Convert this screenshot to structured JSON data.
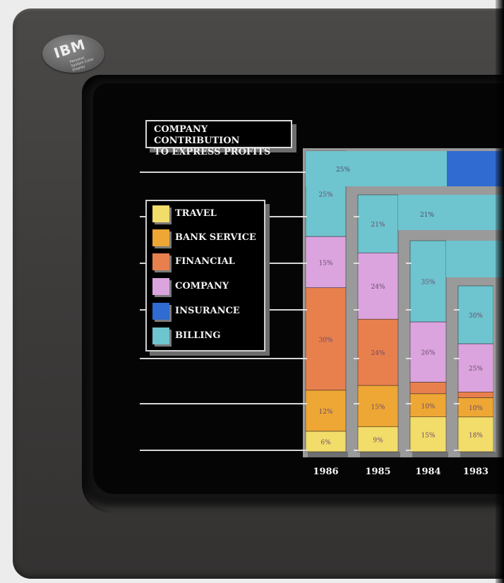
{
  "device": {
    "logo": "IBM",
    "badge_text": "Personal System Color Display"
  },
  "chart_data": {
    "type": "bar",
    "title": "COMPANY CONTRIBUTION TO EXPRESS PROFITS",
    "title_lines": [
      "COMPANY CONTRIBUTION",
      "TO EXPRESS PROFITS"
    ],
    "categories": [
      "1986",
      "1985",
      "1984",
      "1983"
    ],
    "ylim": [
      0,
      100
    ],
    "grid": true,
    "legend_position": "left",
    "series": [
      {
        "name": "TRAVEL",
        "color": "#f2dc6a",
        "values": [
          6,
          9,
          15,
          18
        ]
      },
      {
        "name": "BANK SERVICE",
        "color": "#eea734",
        "values": [
          12,
          15,
          10,
          10
        ]
      },
      {
        "name": "FINANCIAL",
        "color": "#e8804e",
        "values": [
          30,
          24,
          5,
          3
        ]
      },
      {
        "name": "COMPANY",
        "color": "#dba4de",
        "values": [
          15,
          24,
          26,
          25
        ]
      },
      {
        "name": "INSURANCE",
        "color": "#2f6bd0",
        "values": [
          null,
          null,
          null,
          null
        ]
      },
      {
        "name": "BILLING",
        "color": "#6ec4cf",
        "values": [
          25,
          21,
          35,
          30
        ]
      }
    ],
    "labels": [
      [
        "6%",
        "12%",
        "30%",
        "15%",
        "",
        "25%"
      ],
      [
        "9%",
        "15%",
        "24%",
        "24%",
        "",
        "21%"
      ],
      [
        "15%",
        "10%",
        "",
        "26%",
        "",
        "35%"
      ],
      [
        "18%",
        "10%",
        "",
        "25%",
        "",
        "30%"
      ]
    ]
  }
}
